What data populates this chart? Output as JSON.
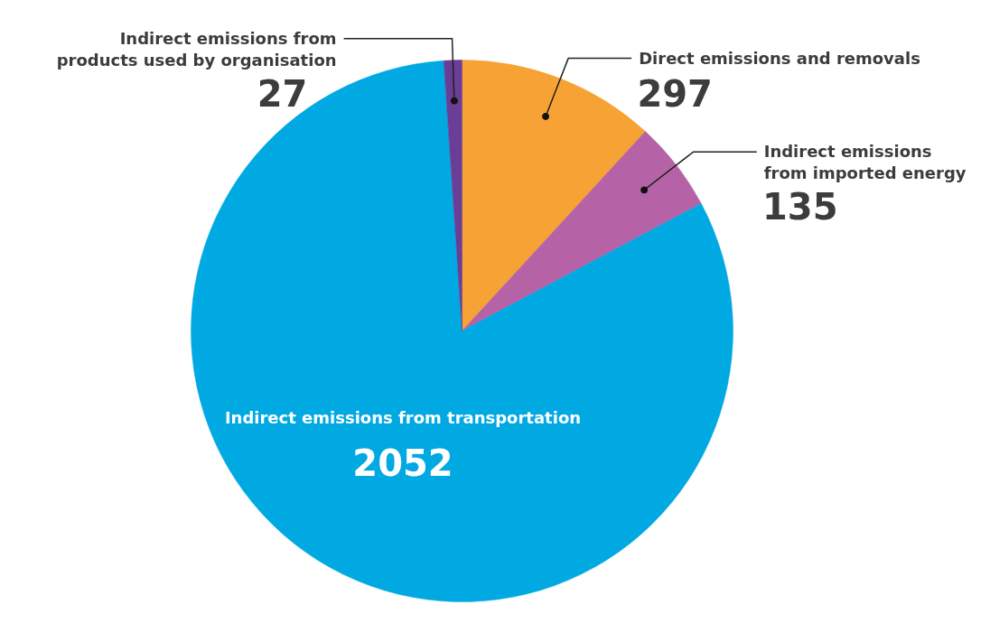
{
  "chart_data": {
    "type": "pie",
    "categories": [
      "Direct emissions and removals",
      "Indirect emissions from imported energy",
      "Indirect emissions from transportation",
      "Indirect emissions from products used by organisation"
    ],
    "values": [
      297,
      135,
      2052,
      27
    ],
    "colors": [
      "#f7a234",
      "#b563a6",
      "#00a9e2",
      "#6a3d96"
    ],
    "data_labels": true
  }
}
